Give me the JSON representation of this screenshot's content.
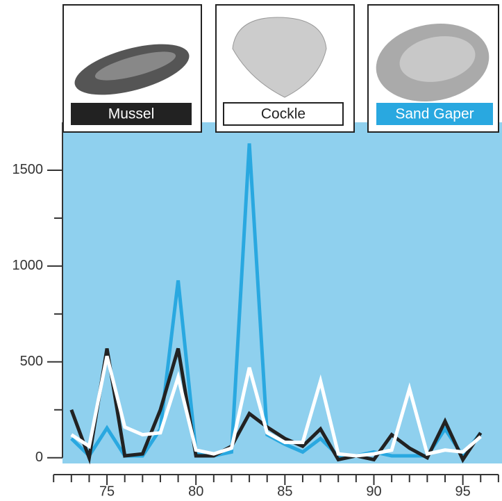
{
  "chart_data": {
    "type": "line",
    "x": [
      73,
      74,
      75,
      76,
      77,
      78,
      79,
      80,
      81,
      82,
      83,
      84,
      85,
      86,
      87,
      88,
      89,
      90,
      91,
      92,
      93,
      94,
      95,
      96
    ],
    "series": [
      {
        "name": "Mussel",
        "color": "#222222",
        "values": [
          250,
          0,
          570,
          10,
          20,
          250,
          570,
          10,
          10,
          60,
          230,
          160,
          100,
          60,
          150,
          -10,
          10,
          -10,
          120,
          50,
          0,
          190,
          -10,
          130
        ]
      },
      {
        "name": "Cockle",
        "color": "#ffffff",
        "values": [
          120,
          60,
          530,
          160,
          120,
          130,
          420,
          40,
          20,
          50,
          470,
          130,
          80,
          80,
          400,
          20,
          10,
          20,
          40,
          360,
          20,
          40,
          30,
          110
        ]
      },
      {
        "name": "Sand Gaper",
        "color": "#29a8e0",
        "values": [
          100,
          10,
          155,
          10,
          10,
          150,
          925,
          30,
          10,
          30,
          1640,
          120,
          70,
          30,
          100,
          10,
          10,
          30,
          10,
          10,
          10,
          150,
          10,
          130
        ]
      }
    ],
    "xlim": [
      72.5,
      97.2
    ],
    "ylim": [
      -30,
      1750
    ],
    "xticks": [
      75,
      80,
      85,
      90,
      95
    ],
    "xminorticks": [
      72,
      73,
      74,
      76,
      77,
      78,
      79,
      81,
      82,
      83,
      84,
      86,
      87,
      88,
      89,
      91,
      92,
      93,
      94,
      96,
      97
    ],
    "yticks": [
      0,
      500,
      1000,
      1500
    ],
    "yminorticks": [
      250,
      750,
      1250
    ],
    "background": "#8fd0ee"
  }
}
